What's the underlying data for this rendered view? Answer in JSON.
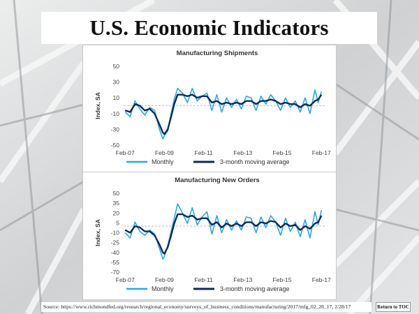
{
  "page": {
    "title": "U.S. Economic Indicators"
  },
  "footer": {
    "source": "Source: https://www.richmondfed.org/research/regional_economy/surveys_of_business_conditions/manufacturing/2017/mfg_02_28_17, 2/28/17",
    "toc_button": "Return to TOC"
  },
  "colors": {
    "monthly": "#29a8e0",
    "moving_average": "#102a5c",
    "zero_line": "#b0b0b0"
  },
  "chart_data": [
    {
      "type": "line",
      "title": "Manufacturing Shipments",
      "ylabel": "Index, SA",
      "ylim": [
        -50,
        50
      ],
      "yticks": [
        50,
        30,
        10,
        -10,
        -30,
        -50
      ],
      "xlim": [
        2007.0,
        2017.25
      ],
      "xticks": [
        {
          "x": 2007.08,
          "label": "Feb-07"
        },
        {
          "x": 2009.08,
          "label": "Feb-09"
        },
        {
          "x": 2011.08,
          "label": "Feb-11"
        },
        {
          "x": 2013.08,
          "label": "Feb-13"
        },
        {
          "x": 2015.08,
          "label": "Feb-15"
        },
        {
          "x": 2017.08,
          "label": "Feb-17"
        }
      ],
      "legend_position": "bottom",
      "series": [
        {
          "name": "Monthly",
          "x": [
            2007.08,
            2007.33,
            2007.58,
            2007.83,
            2008.08,
            2008.33,
            2008.58,
            2008.83,
            2009.0,
            2009.08,
            2009.25,
            2009.42,
            2009.58,
            2009.75,
            2010.0,
            2010.25,
            2010.5,
            2010.75,
            2011.0,
            2011.25,
            2011.5,
            2011.75,
            2012.0,
            2012.25,
            2012.5,
            2012.75,
            2013.0,
            2013.25,
            2013.5,
            2013.75,
            2014.0,
            2014.25,
            2014.5,
            2014.75,
            2015.0,
            2015.25,
            2015.5,
            2015.75,
            2016.0,
            2016.25,
            2016.5,
            2016.75,
            2016.92,
            2017.08
          ],
          "values": [
            -8,
            -14,
            6,
            -4,
            -12,
            -2,
            -6,
            -30,
            -42,
            -38,
            -32,
            -10,
            8,
            22,
            16,
            4,
            22,
            6,
            12,
            16,
            -6,
            14,
            -8,
            10,
            -2,
            8,
            -4,
            12,
            10,
            -6,
            12,
            2,
            14,
            6,
            -6,
            10,
            -2,
            6,
            -8,
            10,
            -10,
            20,
            4,
            18
          ]
        },
        {
          "name": "3-month moving average",
          "x": [
            2007.08,
            2007.33,
            2007.58,
            2007.83,
            2008.08,
            2008.33,
            2008.58,
            2008.83,
            2009.0,
            2009.08,
            2009.25,
            2009.42,
            2009.58,
            2009.75,
            2010.0,
            2010.25,
            2010.5,
            2010.75,
            2011.0,
            2011.25,
            2011.5,
            2011.75,
            2012.0,
            2012.25,
            2012.5,
            2012.75,
            2013.0,
            2013.25,
            2013.5,
            2013.75,
            2014.0,
            2014.25,
            2014.5,
            2014.75,
            2015.0,
            2015.25,
            2015.5,
            2015.75,
            2016.0,
            2016.25,
            2016.5,
            2016.75,
            2016.92,
            2017.08
          ],
          "values": [
            -6,
            -8,
            2,
            0,
            -6,
            -4,
            -10,
            -24,
            -34,
            -36,
            -30,
            -14,
            2,
            14,
            14,
            12,
            14,
            10,
            12,
            12,
            4,
            6,
            2,
            4,
            2,
            4,
            2,
            6,
            6,
            2,
            6,
            6,
            8,
            6,
            2,
            4,
            2,
            2,
            -2,
            2,
            0,
            6,
            8,
            14
          ]
        }
      ]
    },
    {
      "type": "line",
      "title": "Manufacturing New Orders",
      "ylabel": "Index, SA",
      "ylim": [
        -70,
        50
      ],
      "yticks": [
        50,
        35,
        20,
        5,
        -10,
        -25,
        -40,
        -55,
        -70
      ],
      "xlim": [
        2007.0,
        2017.25
      ],
      "xticks": [
        {
          "x": 2007.08,
          "label": "Feb-07"
        },
        {
          "x": 2009.08,
          "label": "Feb-09"
        },
        {
          "x": 2011.08,
          "label": "Feb-11"
        },
        {
          "x": 2013.08,
          "label": "Feb-13"
        },
        {
          "x": 2015.08,
          "label": "Feb-15"
        },
        {
          "x": 2017.08,
          "label": "Feb-17"
        }
      ],
      "legend_position": "bottom",
      "series": [
        {
          "name": "Monthly",
          "x": [
            2007.08,
            2007.33,
            2007.58,
            2007.83,
            2008.08,
            2008.33,
            2008.58,
            2008.83,
            2009.0,
            2009.08,
            2009.25,
            2009.42,
            2009.58,
            2009.75,
            2010.0,
            2010.25,
            2010.5,
            2010.75,
            2011.0,
            2011.25,
            2011.5,
            2011.75,
            2012.0,
            2012.25,
            2012.5,
            2012.75,
            2013.0,
            2013.25,
            2013.5,
            2013.75,
            2014.0,
            2014.25,
            2014.5,
            2014.75,
            2015.0,
            2015.25,
            2015.5,
            2015.75,
            2016.0,
            2016.25,
            2016.5,
            2016.75,
            2016.92,
            2017.08
          ],
          "values": [
            -10,
            -18,
            6,
            -8,
            -14,
            -6,
            -12,
            -34,
            -50,
            -46,
            -30,
            -8,
            12,
            34,
            20,
            4,
            28,
            2,
            14,
            22,
            -12,
            16,
            -10,
            10,
            -6,
            8,
            -6,
            14,
            12,
            -10,
            14,
            -2,
            16,
            6,
            -14,
            12,
            -8,
            6,
            -16,
            10,
            -18,
            22,
            2,
            24
          ]
        },
        {
          "name": "3-month moving average",
          "x": [
            2007.08,
            2007.33,
            2007.58,
            2007.83,
            2008.08,
            2008.33,
            2008.58,
            2008.83,
            2009.0,
            2009.08,
            2009.25,
            2009.42,
            2009.58,
            2009.75,
            2010.0,
            2010.25,
            2010.5,
            2010.75,
            2011.0,
            2011.25,
            2011.5,
            2011.75,
            2012.0,
            2012.25,
            2012.5,
            2012.75,
            2013.0,
            2013.25,
            2013.5,
            2013.75,
            2014.0,
            2014.25,
            2014.5,
            2014.75,
            2015.0,
            2015.25,
            2015.5,
            2015.75,
            2016.0,
            2016.25,
            2016.5,
            2016.75,
            2016.92,
            2017.08
          ],
          "values": [
            -6,
            -10,
            0,
            -2,
            -8,
            -8,
            -14,
            -28,
            -40,
            -42,
            -32,
            -14,
            4,
            18,
            18,
            14,
            16,
            10,
            12,
            12,
            2,
            6,
            -2,
            4,
            0,
            4,
            0,
            6,
            6,
            0,
            6,
            4,
            8,
            6,
            -2,
            4,
            0,
            2,
            -6,
            0,
            -4,
            4,
            6,
            16
          ]
        }
      ]
    }
  ]
}
